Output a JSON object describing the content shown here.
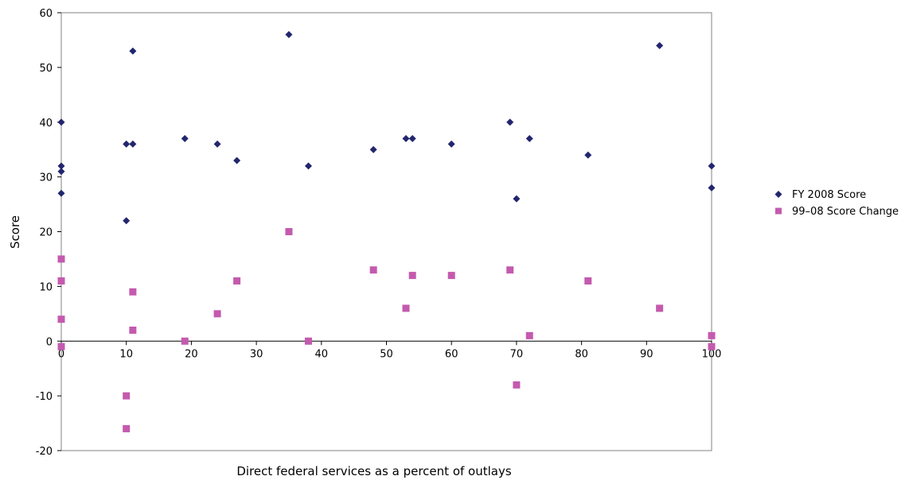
{
  "chart_data": {
    "type": "scatter",
    "title": "",
    "xlabel": "Direct federal services as a percent of outlays",
    "ylabel": "Score",
    "xlim": [
      0,
      100
    ],
    "ylim": [
      -20,
      60
    ],
    "xticks": [
      0,
      10,
      20,
      30,
      40,
      50,
      60,
      70,
      80,
      90,
      100
    ],
    "yticks": [
      -20,
      -10,
      0,
      10,
      20,
      30,
      40,
      50,
      60
    ],
    "legend_position": "right",
    "grid": false,
    "series": [
      {
        "name": "FY 2008 Score",
        "marker": "diamond",
        "color": "#22266e",
        "points": [
          [
            0,
            40
          ],
          [
            0,
            32
          ],
          [
            0,
            31
          ],
          [
            0,
            27
          ],
          [
            10,
            36
          ],
          [
            10,
            22
          ],
          [
            11,
            53
          ],
          [
            11,
            36
          ],
          [
            19,
            37
          ],
          [
            24,
            36
          ],
          [
            27,
            33
          ],
          [
            35,
            56
          ],
          [
            38,
            32
          ],
          [
            48,
            35
          ],
          [
            53,
            37
          ],
          [
            54,
            37
          ],
          [
            60,
            36
          ],
          [
            69,
            40
          ],
          [
            70,
            26
          ],
          [
            72,
            37
          ],
          [
            81,
            34
          ],
          [
            92,
            54
          ],
          [
            100,
            32
          ],
          [
            100,
            28
          ]
        ]
      },
      {
        "name": "99–08 Score Change",
        "marker": "square",
        "color": "#c45aae",
        "points": [
          [
            0,
            15
          ],
          [
            0,
            11
          ],
          [
            0,
            4
          ],
          [
            0,
            -1
          ],
          [
            10,
            -10
          ],
          [
            10,
            -16
          ],
          [
            11,
            9
          ],
          [
            11,
            2
          ],
          [
            19,
            0
          ],
          [
            24,
            5
          ],
          [
            27,
            11
          ],
          [
            35,
            20
          ],
          [
            38,
            0
          ],
          [
            48,
            13
          ],
          [
            53,
            6
          ],
          [
            54,
            12
          ],
          [
            60,
            12
          ],
          [
            69,
            13
          ],
          [
            70,
            -8
          ],
          [
            72,
            1
          ],
          [
            81,
            11
          ],
          [
            92,
            6
          ],
          [
            100,
            1
          ],
          [
            100,
            -1
          ]
        ]
      }
    ]
  }
}
